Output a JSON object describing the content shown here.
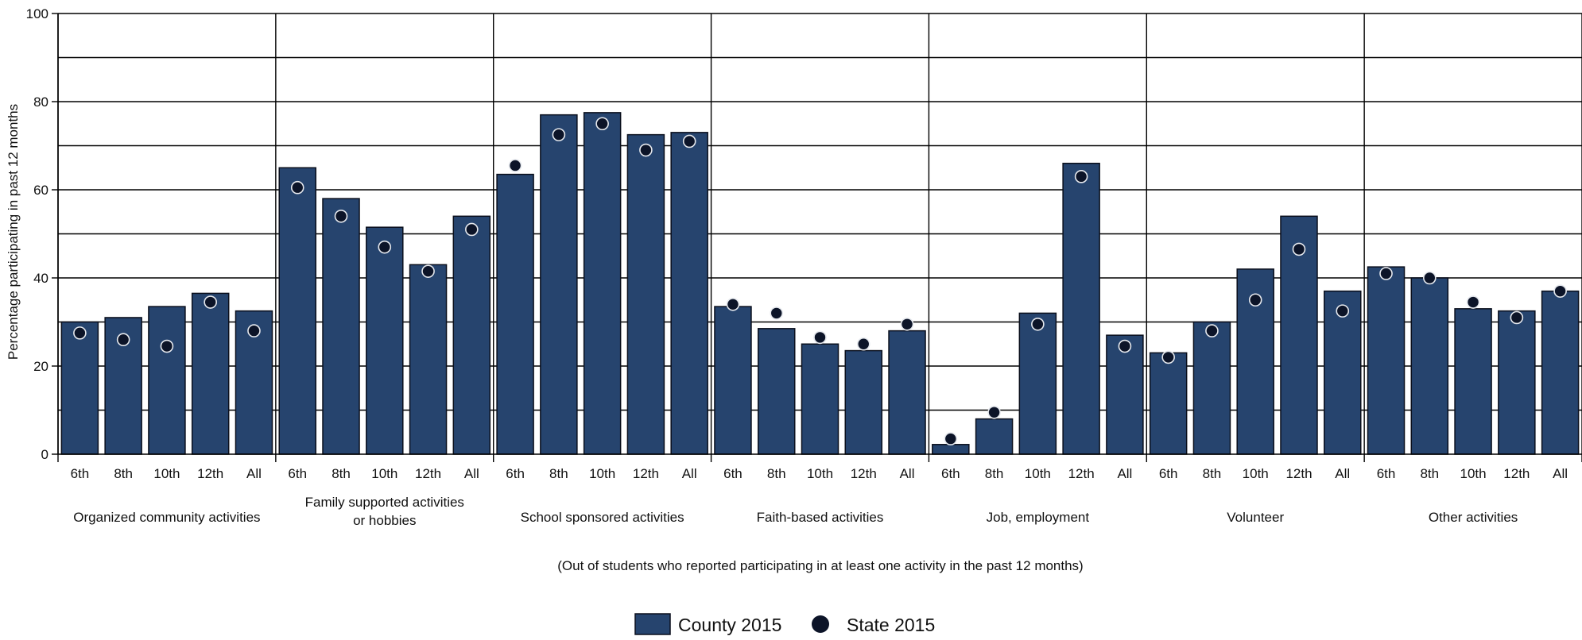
{
  "chart_data": {
    "type": "bar",
    "ylabel": "Percentage participating in past 12 months",
    "ylim": [
      0,
      100
    ],
    "yticks": [
      0,
      20,
      40,
      60,
      80,
      100
    ],
    "grid": true,
    "note": "(Out of students who reported participating in at least one activity in the past 12 months)",
    "groups": [
      {
        "label": "Organized community activities",
        "categories": [
          "6th",
          "8th",
          "10th",
          "12th",
          "All"
        ],
        "county": [
          30,
          31,
          33.5,
          36.5,
          32.5
        ],
        "state": [
          27.5,
          26,
          24.5,
          34.5,
          28
        ]
      },
      {
        "label": "Family supported activities\nor hobbies",
        "categories": [
          "6th",
          "8th",
          "10th",
          "12th",
          "All"
        ],
        "county": [
          65,
          58,
          51.5,
          43,
          54
        ],
        "state": [
          60.5,
          54,
          47,
          41.5,
          51
        ]
      },
      {
        "label": "School sponsored activities",
        "categories": [
          "6th",
          "8th",
          "10th",
          "12th",
          "All"
        ],
        "county": [
          63.5,
          77,
          77.5,
          72.5,
          73
        ],
        "state": [
          65.5,
          72.5,
          75,
          69,
          71
        ]
      },
      {
        "label": "Faith-based activities",
        "categories": [
          "6th",
          "8th",
          "10th",
          "12th",
          "All"
        ],
        "county": [
          33.5,
          28.5,
          25,
          23.5,
          28
        ],
        "state": [
          34,
          32,
          26.5,
          25,
          29.5
        ]
      },
      {
        "label": "Job, employment",
        "categories": [
          "6th",
          "8th",
          "10th",
          "12th",
          "All"
        ],
        "county": [
          2.2,
          8,
          32,
          66,
          27
        ],
        "state": [
          3.5,
          9.5,
          29.5,
          63,
          24.5
        ]
      },
      {
        "label": "Volunteer",
        "categories": [
          "6th",
          "8th",
          "10th",
          "12th",
          "All"
        ],
        "county": [
          23,
          30,
          42,
          54,
          37
        ],
        "state": [
          22,
          28,
          35,
          46.5,
          32.5
        ]
      },
      {
        "label": "Other activities",
        "categories": [
          "6th",
          "8th",
          "10th",
          "12th",
          "All"
        ],
        "county": [
          42.5,
          40,
          33,
          32.5,
          37
        ],
        "state": [
          41,
          40,
          34.5,
          31,
          37
        ]
      }
    ],
    "series": [
      {
        "name": "County 2015",
        "color": "#26446e",
        "kind": "bar"
      },
      {
        "name": "State 2015",
        "color": "#0c1428",
        "kind": "dot"
      }
    ],
    "legend_position": "bottom-center"
  }
}
